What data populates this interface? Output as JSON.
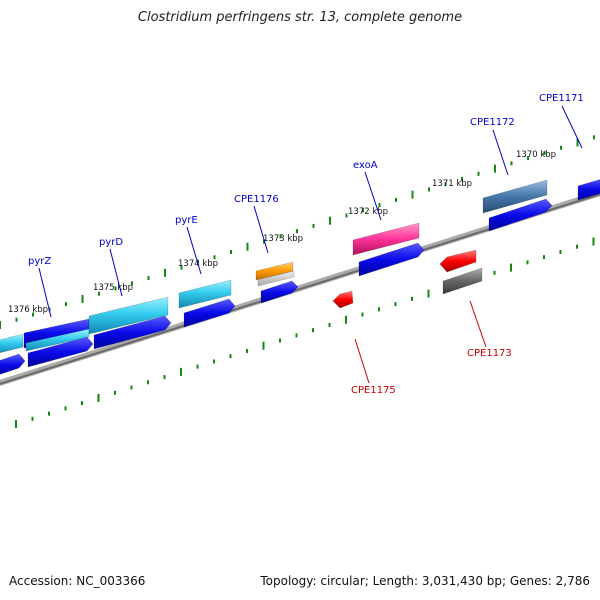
{
  "title": "Clostridium perfringens str. 13, complete genome",
  "footer": {
    "accession": "Accession: NC_003366",
    "topology": "Topology: circular; Length: 3,031,430 bp; Genes: 2,786"
  },
  "ruler_labels": [
    "1370 kbp",
    "1371 kbp",
    "1372 kbp",
    "1373 kbp",
    "1374 kbp",
    "1375 kbp",
    "1376 kbp"
  ],
  "gene_labels": {
    "forward": [
      "CPE1171",
      "CPE1172",
      "exoA",
      "CPE1176",
      "pyrE",
      "pyrD",
      "pyrZ"
    ],
    "reverse": [
      "CPE1173",
      "CPE1175"
    ]
  },
  "colors": {
    "forward_label": "#0000cc",
    "reverse_label": "#cc0000",
    "cds": "#1010e0",
    "pyr_gene": "#33ccee",
    "exoA_gene": "#ff3399",
    "CPE1172_gene": "#4477aa",
    "CPE1176_gene": "#ff9900",
    "reverse_gene": "#ff0000",
    "grey_gene": "#666666",
    "backbone": "#888888",
    "ticks": "#118811"
  }
}
